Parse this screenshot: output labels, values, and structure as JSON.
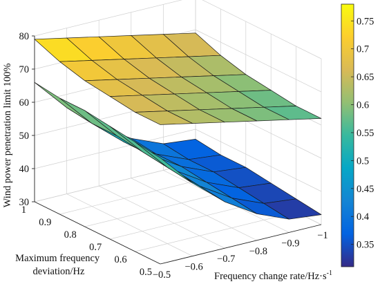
{
  "chart_data": {
    "type": "surface3d",
    "title": "",
    "zlabel": "Wind power penetration limit 100%",
    "ylabel_lines": [
      "Maximum frequency",
      "deviation/Hz"
    ],
    "xlabel": "Frequency change rate/Hz·s",
    "xlabel_sup": "-1",
    "x_ticks": [
      "−0.5",
      "−0.6",
      "−0.7",
      "−0.8",
      "−0.9",
      "−1"
    ],
    "x_tick_values": [
      -0.5,
      -0.6,
      -0.7,
      -0.8,
      -0.9,
      -1.0
    ],
    "y_ticks": [
      "0.5",
      "0.6",
      "0.7",
      "0.8",
      "0.9",
      "1"
    ],
    "y_tick_values": [
      0.5,
      0.6,
      0.7,
      0.8,
      0.9,
      1.0
    ],
    "z_ticks": [
      "30",
      "40",
      "50",
      "60",
      "70",
      "80"
    ],
    "z_tick_values": [
      30,
      40,
      50,
      60,
      70,
      80
    ],
    "xlim": [
      -1.0,
      -0.5
    ],
    "ylim": [
      0.5,
      1.0
    ],
    "zlim": [
      30,
      80
    ],
    "grid": true,
    "colormap": "parula",
    "colorbar": {
      "ticks": [
        "0.35",
        "0.4",
        "0.45",
        "0.5",
        "0.55",
        "0.6",
        "0.65",
        "0.7",
        "0.75"
      ],
      "tick_values": [
        0.35,
        0.4,
        0.45,
        0.5,
        0.55,
        0.6,
        0.65,
        0.7,
        0.75
      ],
      "range": [
        0.31,
        0.78
      ]
    },
    "surfaces": [
      {
        "description_key": "rising",
        "x": [
          -1.0,
          -0.9,
          -0.8,
          -0.7,
          -0.6,
          -0.5
        ],
        "y": [
          0.5,
          0.6,
          0.7,
          0.8,
          0.9,
          1.0
        ],
        "z": [
          [
            33,
            34,
            38,
            44,
            52,
            62
          ],
          [
            34,
            35,
            39,
            45,
            53,
            63
          ],
          [
            35,
            36,
            40,
            46,
            54,
            64
          ],
          [
            36,
            37,
            41,
            47,
            55,
            65
          ],
          [
            36,
            37,
            41,
            47,
            55,
            65
          ],
          [
            37,
            38,
            42,
            48,
            56,
            66
          ]
        ],
        "c": [
          [
            0.32,
            0.33,
            0.38,
            0.44,
            0.51,
            0.58
          ],
          [
            0.33,
            0.34,
            0.39,
            0.45,
            0.52,
            0.59
          ],
          [
            0.34,
            0.35,
            0.4,
            0.46,
            0.53,
            0.6
          ],
          [
            0.35,
            0.36,
            0.41,
            0.47,
            0.54,
            0.61
          ],
          [
            0.36,
            0.37,
            0.42,
            0.48,
            0.55,
            0.62
          ],
          [
            0.37,
            0.38,
            0.43,
            0.49,
            0.56,
            0.63
          ]
        ]
      },
      {
        "description_key": "saddle",
        "x": [
          -1.0,
          -0.9,
          -0.8,
          -0.7,
          -0.6,
          -0.5
        ],
        "y": [
          0.5,
          0.6,
          0.7,
          0.8,
          0.9,
          1.0
        ],
        "z": [
          [
            62,
            64,
            66,
            68,
            70,
            72
          ],
          [
            62,
            64,
            66,
            68,
            70,
            72
          ],
          [
            63,
            65,
            67,
            69,
            71,
            73
          ],
          [
            64,
            66,
            68,
            70,
            72,
            74
          ],
          [
            66,
            68,
            70,
            72,
            74,
            76
          ],
          [
            69,
            71,
            73,
            75,
            77,
            79
          ]
        ],
        "c": [
          [
            0.56,
            0.58,
            0.6,
            0.62,
            0.64,
            0.66
          ],
          [
            0.56,
            0.58,
            0.6,
            0.62,
            0.64,
            0.66
          ],
          [
            0.58,
            0.6,
            0.62,
            0.64,
            0.66,
            0.68
          ],
          [
            0.6,
            0.62,
            0.64,
            0.66,
            0.68,
            0.7
          ],
          [
            0.63,
            0.65,
            0.67,
            0.69,
            0.71,
            0.73
          ],
          [
            0.67,
            0.69,
            0.71,
            0.73,
            0.75,
            0.77
          ]
        ]
      }
    ]
  }
}
